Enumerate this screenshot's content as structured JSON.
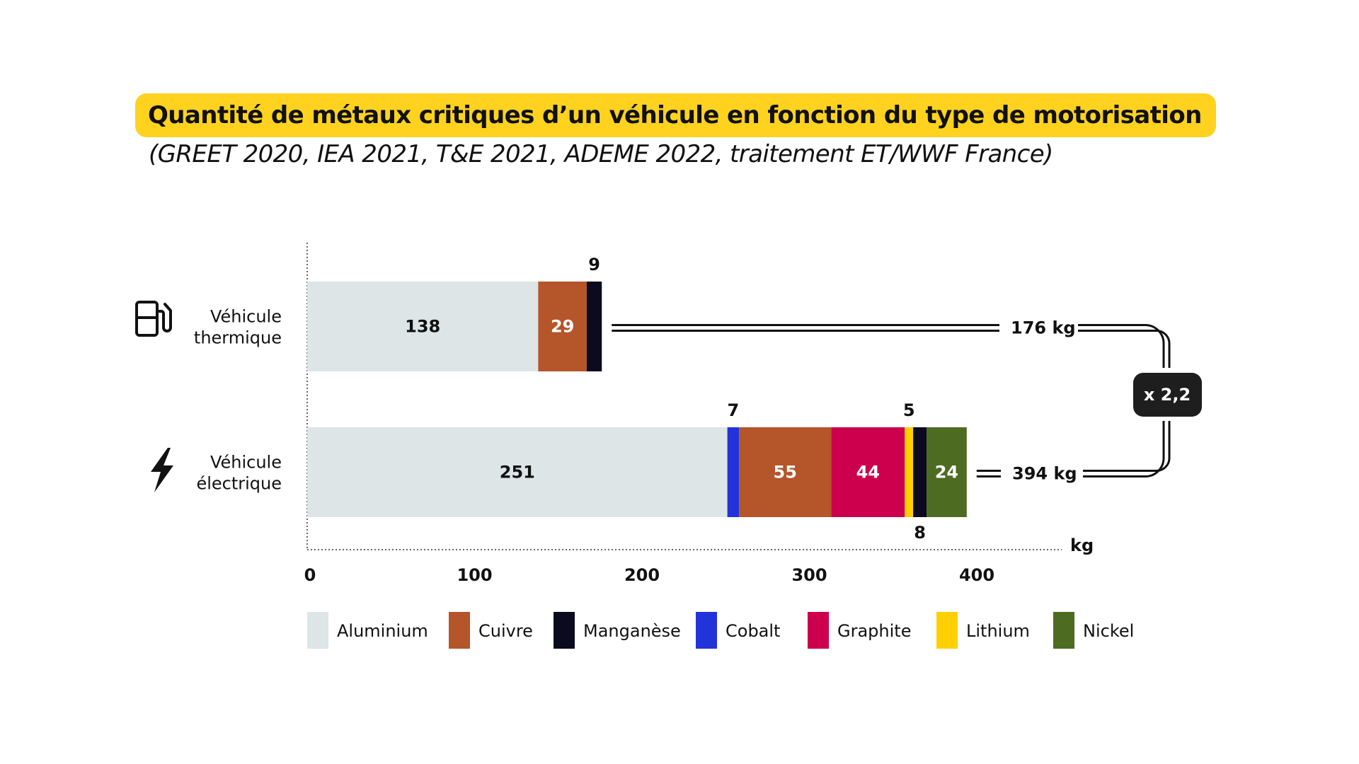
{
  "title": "Quantité de métaux critiques d’un véhicule en fonction du type de motorisation",
  "subtitle": "(GREET 2020, IEA 2021, T&E 2021, ADEME 2022, traitement ET/WWF France)",
  "chart_data": {
    "type": "bar",
    "orientation": "horizontal",
    "stacked": true,
    "xlabel": "kg",
    "xlim": [
      0,
      450
    ],
    "xticks": [
      0,
      100,
      200,
      300,
      400
    ],
    "legend_placement": "bottom",
    "categories": [
      {
        "label_lines": [
          "Véhicule",
          "thermique"
        ],
        "icon": "fuel-pump-icon",
        "total_label": "176 kg"
      },
      {
        "label_lines": [
          "Véhicule",
          "électrique"
        ],
        "icon": "lightning-bolt-icon",
        "total_label": "394 kg"
      }
    ],
    "series": [
      {
        "name": "Aluminium",
        "color": "#DDE5E6",
        "values": [
          138,
          251
        ]
      },
      {
        "name": "Cobalt",
        "color": "#2233D9",
        "values": [
          0,
          7
        ]
      },
      {
        "name": "Cuivre",
        "color": "#B5552A",
        "values": [
          29,
          55
        ]
      },
      {
        "name": "Graphite",
        "color": "#CC004C",
        "values": [
          0,
          44
        ]
      },
      {
        "name": "Lithium",
        "color": "#FFD000",
        "values": [
          0,
          5
        ]
      },
      {
        "name": "Manganèse",
        "color": "#0B0A1F",
        "values": [
          9,
          8
        ]
      },
      {
        "name": "Nickel",
        "color": "#4E6B22",
        "values": [
          0,
          24
        ]
      }
    ],
    "legend_order": [
      "Aluminium",
      "Cuivre",
      "Manganèse",
      "Cobalt",
      "Graphite",
      "Lithium",
      "Nickel"
    ],
    "segment_labels": [
      [
        {
          "series": "Aluminium",
          "text": "138",
          "pos": "inside",
          "color": "#111111"
        },
        {
          "series": "Cuivre",
          "text": "29",
          "pos": "inside",
          "color": "#ffffff"
        },
        {
          "series": "Manganèse",
          "text": "9",
          "pos": "above",
          "color": "#111111"
        }
      ],
      [
        {
          "series": "Aluminium",
          "text": "251",
          "pos": "inside",
          "color": "#111111"
        },
        {
          "series": "Cobalt",
          "text": "7",
          "pos": "above",
          "color": "#111111"
        },
        {
          "series": "Cuivre",
          "text": "55",
          "pos": "inside",
          "color": "#ffffff"
        },
        {
          "series": "Graphite",
          "text": "44",
          "pos": "inside",
          "color": "#ffffff"
        },
        {
          "series": "Lithium",
          "text": "5",
          "pos": "above",
          "color": "#111111"
        },
        {
          "series": "Manganèse",
          "text": "8",
          "pos": "below",
          "color": "#111111"
        },
        {
          "series": "Nickel",
          "text": "24",
          "pos": "inside",
          "color": "#ffffff"
        }
      ]
    ],
    "ratio_label": "x 2,2"
  }
}
